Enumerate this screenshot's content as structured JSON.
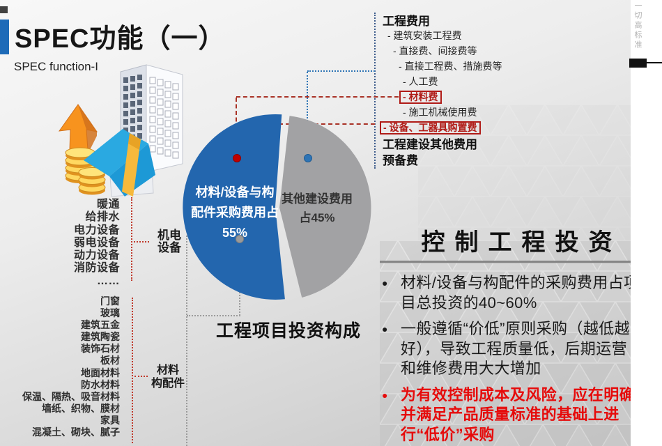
{
  "slide": {
    "title": "SPEC功能（一）",
    "subtitle": "SPEC function-I",
    "side_note": "一切高标准"
  },
  "colors": {
    "accent_blue": "#1e6bb8",
    "pie_blue": "#2366ae",
    "pie_gray": "#a2a2a4",
    "box_red": "#b01b17",
    "bullet_red": "#e60b0b"
  },
  "mep_group": {
    "items": [
      "暖通",
      "给排水",
      "电力设备",
      "弱电设备",
      "动力设备",
      "消防设备",
      "……"
    ],
    "label_lines": [
      "机电",
      "设备"
    ]
  },
  "materials_group": {
    "items": [
      "门窗",
      "玻璃",
      "建筑五金",
      "建筑陶瓷",
      "装饰石材",
      "板材",
      "地面材料",
      "防水材料",
      "保温、隔热、吸音材料",
      "墙纸、织物、膜材",
      "家具",
      "混凝土、砌块、腻子"
    ],
    "label_lines": [
      "材料",
      "构配件"
    ]
  },
  "fee_breakdown": {
    "items": [
      {
        "label": "工程费用",
        "level": "0",
        "kind": "head"
      },
      {
        "label": "- 建筑安装工程费",
        "level": "1",
        "kind": "item"
      },
      {
        "label": "- 直接费、间接费等",
        "level": "2",
        "kind": "item"
      },
      {
        "label": "- 直接工程费、措施费等",
        "level": "3",
        "kind": "item"
      },
      {
        "label": "- 人工费",
        "level": "4",
        "kind": "item"
      },
      {
        "label": "- 材料费",
        "level": "4",
        "kind": "boxed"
      },
      {
        "label": "- 施工机械使用费",
        "level": "4",
        "kind": "item"
      },
      {
        "label": "- 设备、工器具购置费",
        "level": "0",
        "kind": "boxed"
      },
      {
        "label": "工程建设其他费用",
        "level": "0",
        "kind": "head"
      },
      {
        "label": "预备费",
        "level": "0",
        "kind": "head"
      }
    ]
  },
  "chart_data": {
    "type": "pie",
    "title": "工程项目投资构成",
    "legend": "none",
    "slices": [
      {
        "label": "材料/设备与构配件采购费用占",
        "value": 55,
        "color": "#2366ae",
        "label_lines": [
          "材料/设备与构",
          "配件采购费用占",
          "55%"
        ]
      },
      {
        "label": "其他建设费用",
        "value": 45,
        "color": "#a2a2a4",
        "label_lines": [
          "其他建设费用",
          "占45%"
        ]
      }
    ]
  },
  "control": {
    "heading": "控制工程投资",
    "bullets": [
      {
        "label": "材料/设备与构配件的采购费用占项目总投资的40~60%",
        "emphasis": "normal",
        "marker": "●"
      },
      {
        "label": "一般遵循“价低”原则采购（越低越好），导致工程质量低，后期运营和维修费用大大增加",
        "emphasis": "normal",
        "marker": "●"
      },
      {
        "label": "为有效控制成本及风险，应在明确并满足产品质量标准的基础上进行“低价”采购",
        "emphasis": "red",
        "marker": "●"
      }
    ]
  }
}
